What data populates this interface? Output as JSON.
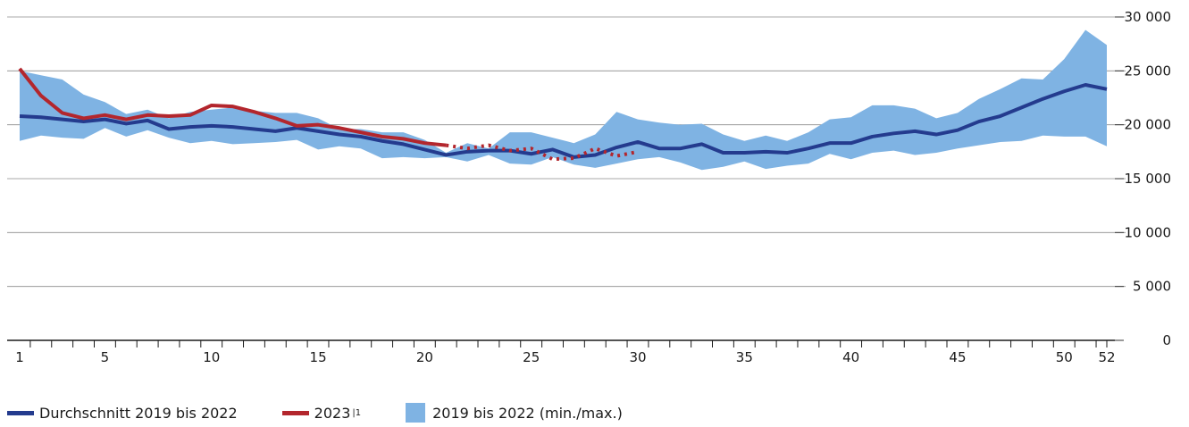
{
  "chart_data": {
    "type": "line",
    "title": "",
    "xlabel": "",
    "ylabel": "",
    "x_ticks": [
      1,
      5,
      10,
      15,
      20,
      25,
      30,
      35,
      40,
      45,
      50,
      52
    ],
    "y_ticks": [
      0,
      5000,
      10000,
      15000,
      20000,
      25000,
      30000
    ],
    "y_tick_labels": [
      "0",
      "5 000",
      "10 000",
      "15 000",
      "20 000",
      "25 000",
      "30 000"
    ],
    "xlim": [
      1,
      52
    ],
    "ylim": [
      0,
      30000
    ],
    "y_axis_position": "right",
    "grid": "horizontal",
    "legend_position": "bottom-left",
    "weeks": [
      1,
      2,
      3,
      4,
      5,
      6,
      7,
      8,
      9,
      10,
      11,
      12,
      13,
      14,
      15,
      16,
      17,
      18,
      19,
      20,
      21,
      22,
      23,
      24,
      25,
      26,
      27,
      28,
      29,
      30,
      31,
      32,
      33,
      34,
      35,
      36,
      37,
      38,
      39,
      40,
      41,
      42,
      43,
      44,
      45,
      46,
      47,
      48,
      49,
      50,
      51,
      52
    ],
    "series": [
      {
        "name": "2019 bis 2022 (min./max.)",
        "type": "range",
        "color": "#7fb3e3",
        "min": [
          18500,
          19000,
          18800,
          18700,
          19700,
          18900,
          19500,
          18800,
          18300,
          18500,
          18200,
          18300,
          18400,
          18600,
          17700,
          18000,
          17800,
          16900,
          17000,
          16900,
          17000,
          16600,
          17200,
          16400,
          16300,
          17000,
          16300,
          16000,
          16400,
          16800,
          17000,
          16500,
          15800,
          16100,
          16600,
          15900,
          16200,
          16400,
          17300,
          16800,
          17400,
          17600,
          17200,
          17400,
          17800,
          18100,
          18400,
          18500,
          19000,
          18900,
          18900,
          18000
        ],
        "max": [
          25000,
          24600,
          24200,
          22800,
          22100,
          21000,
          21400,
          20600,
          21200,
          21400,
          21600,
          21300,
          21100,
          21100,
          20600,
          19600,
          19600,
          19300,
          19300,
          18600,
          17400,
          18300,
          17800,
          19300,
          19300,
          18800,
          18300,
          19100,
          21200,
          20500,
          20200,
          20000,
          20100,
          19100,
          18500,
          19000,
          18500,
          19300,
          20500,
          20700,
          21800,
          21800,
          21500,
          20600,
          21100,
          22400,
          23300,
          24300,
          24200,
          26100,
          28800,
          27400
        ]
      },
      {
        "name": "Durchschnitt 2019 bis 2022",
        "type": "line",
        "color": "#243b8e",
        "values": [
          20800,
          20700,
          20500,
          20300,
          20500,
          20100,
          20400,
          19600,
          19800,
          19900,
          19800,
          19600,
          19400,
          19700,
          19400,
          19100,
          18900,
          18500,
          18200,
          17700,
          17200,
          17500,
          17600,
          17600,
          17300,
          17700,
          17000,
          17200,
          17900,
          18400,
          17800,
          17800,
          18200,
          17400,
          17400,
          17500,
          17400,
          17800,
          18300,
          18300,
          18900,
          19200,
          19400,
          19100,
          19500,
          20300,
          20800,
          21600,
          22400,
          23100,
          23700,
          23300
        ]
      },
      {
        "name": "2023",
        "legend_label": "2023",
        "legend_note": "|1",
        "type": "line",
        "color": "#b3262d",
        "solid_until_week": 21,
        "values": [
          25200,
          22700,
          21100,
          20600,
          20900,
          20500,
          20900,
          20800,
          20900,
          21800,
          21700,
          21200,
          20600,
          19900,
          20000,
          19700,
          19300,
          18900,
          18700,
          18300,
          18100,
          17800,
          18100,
          17600,
          17800,
          16800,
          16900,
          17800,
          17100,
          17500
        ]
      }
    ]
  }
}
